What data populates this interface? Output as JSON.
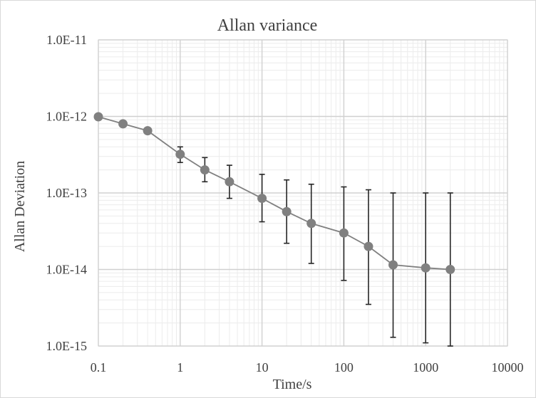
{
  "chart_data": {
    "type": "scatter",
    "title": "Allan variance",
    "xlabel": "Time/s",
    "ylabel": "Allan Deviation",
    "xscale": "log",
    "yscale": "log",
    "xlim": [
      0.1,
      10000
    ],
    "ylim": [
      1e-15,
      1e-11
    ],
    "xticks": [
      0.1,
      1,
      10,
      100,
      1000,
      10000
    ],
    "xtick_labels": [
      "0.1",
      "1",
      "10",
      "100",
      "1000",
      "10000"
    ],
    "yticks": [
      1e-11,
      1e-12,
      1e-13,
      1e-14,
      1e-15
    ],
    "ytick_labels": [
      "1.0E-11",
      "1.0E-12",
      "1.0E-13",
      "1.0E-14",
      "1.0E-15"
    ],
    "grid": true,
    "minor_grid": true,
    "legend": "none",
    "series": [
      {
        "x": [
          0.1,
          0.2,
          0.4,
          1,
          2,
          4,
          10,
          20,
          40,
          100,
          200,
          400,
          1000,
          2000
        ],
        "y": [
          9.9e-13,
          8e-13,
          6.5e-13,
          3.2e-13,
          2e-13,
          1.4e-13,
          8.5e-14,
          5.7e-14,
          4e-14,
          3e-14,
          2e-14,
          1.15e-14,
          1.05e-14,
          1e-14
        ],
        "err_low": [
          9.9e-13,
          7.6e-13,
          6.1e-13,
          2.5e-13,
          1.4e-13,
          8.5e-14,
          4.2e-14,
          2.2e-14,
          1.2e-14,
          7.2e-15,
          3.5e-15,
          1.3e-15,
          1.1e-15,
          1e-15
        ],
        "err_high": [
          9.9e-13,
          8.4e-13,
          6.9e-13,
          4e-13,
          2.9e-13,
          2.3e-13,
          1.75e-13,
          1.48e-13,
          1.3e-13,
          1.2e-13,
          1.1e-13,
          1e-13,
          1e-13,
          1e-13
        ]
      }
    ]
  },
  "colors": {
    "series": "#808080",
    "error_bar": "#262626",
    "major_grid": "#d0d0d0",
    "minor_grid": "#ececec",
    "text": "#404040"
  }
}
